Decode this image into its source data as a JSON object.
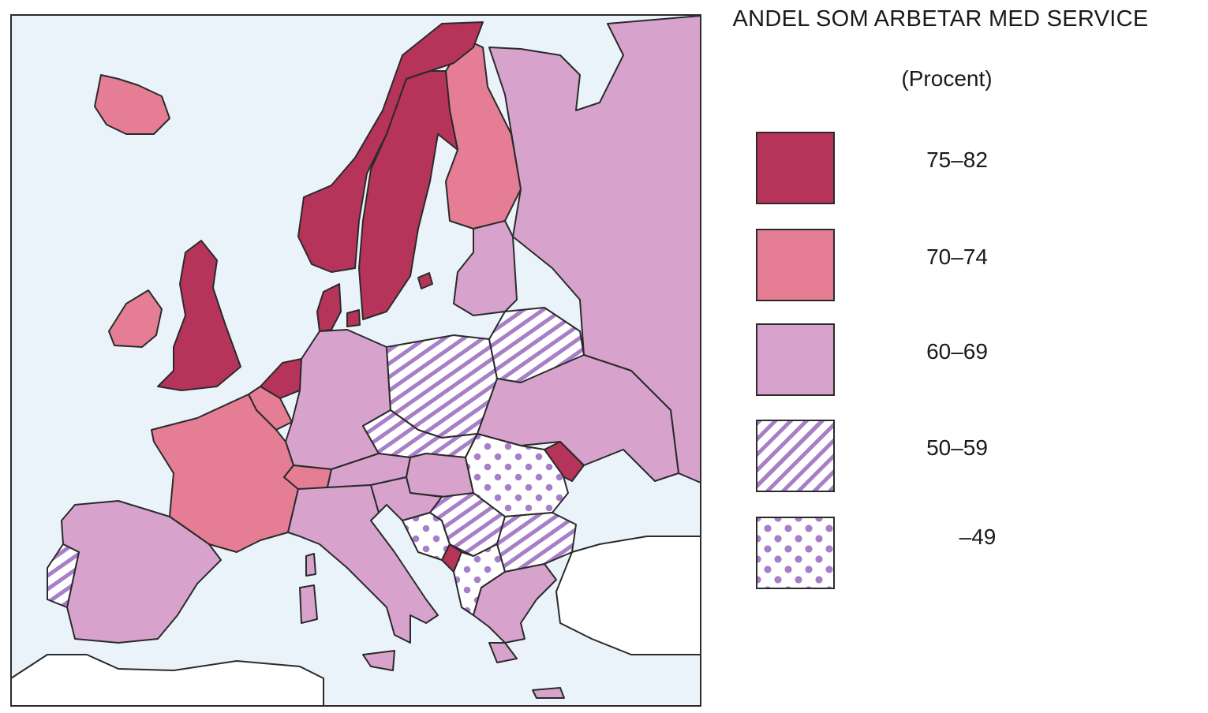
{
  "title": "ANDEL SOM ARBETAR MED SERVICE",
  "subtitle": "(Procent)",
  "legend": [
    {
      "range": "75–82",
      "fill": "#b6345a",
      "pattern": "solid"
    },
    {
      "range": "70–74",
      "fill": "#e57e95",
      "pattern": "solid"
    },
    {
      "range": "60–69",
      "fill": "#d7a3cd",
      "pattern": "solid"
    },
    {
      "range": "50–59",
      "fill": "#a77fc8",
      "pattern": "stripes"
    },
    {
      "range": "–49",
      "fill": "#a77fc8",
      "pattern": "dots"
    }
  ],
  "colors": {
    "sea": "#eaf3fa",
    "outline": "#2a2a2a",
    "outside_land": "#ffffff"
  }
}
